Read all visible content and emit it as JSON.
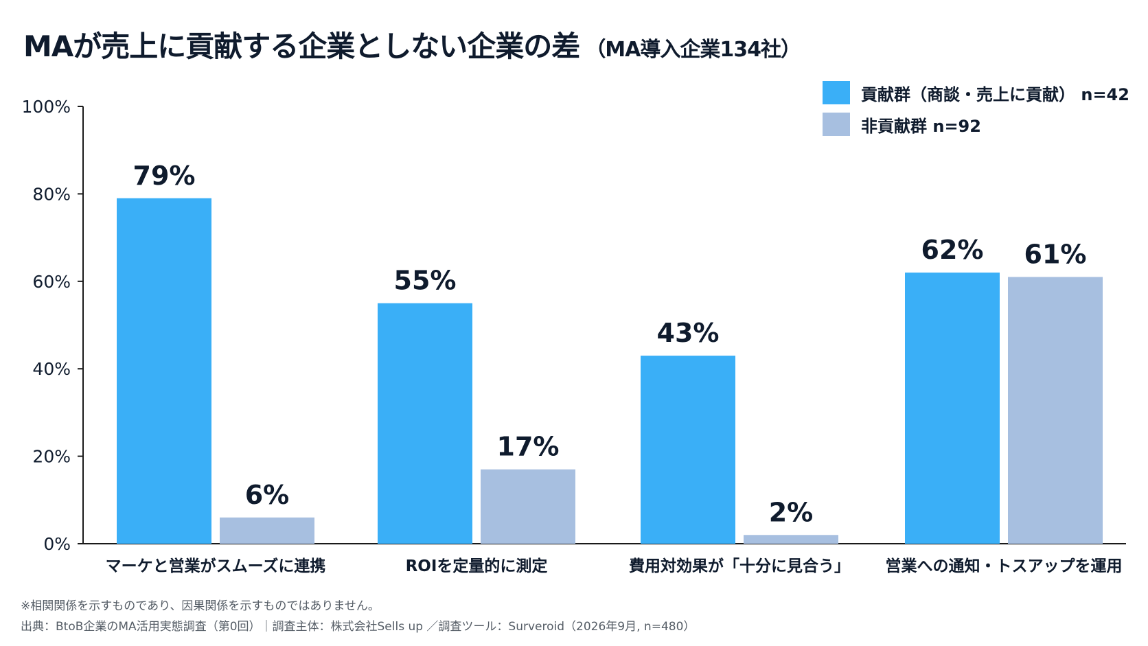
{
  "title": "MAが売上に貢献する企業としない企業の差",
  "subtitle": "（MA導入企業134社）",
  "colors": {
    "contrib": "#3aaff7",
    "noncontrib": "#a7bfe0",
    "axis": "#1a1a1a",
    "text": "#0f1b2d"
  },
  "chart_data": {
    "type": "bar",
    "categories": [
      "マーケと営業がスムーズに連携",
      "ROIを定量的に測定",
      "費用対効果が「十分に見合う」",
      "営業への通知・トスアップを運用"
    ],
    "series": [
      {
        "name": "貢献群（商談・売上に貢献） n=42",
        "values": [
          79,
          55,
          43,
          62
        ],
        "labels": [
          "79%",
          "55%",
          "43%",
          "62%"
        ]
      },
      {
        "name": "非貢献群 n=92",
        "values": [
          6,
          17,
          2,
          61
        ],
        "labels": [
          "6%",
          "17%",
          "2%",
          "61%"
        ]
      }
    ],
    "ylim": [
      0,
      100
    ],
    "yticks": [
      "0%",
      "20%",
      "40%",
      "60%",
      "80%",
      "100%"
    ],
    "grid": false,
    "legend": "top-right"
  },
  "footnotes": {
    "note": "※相関関係を示すものであり、因果関係を示すものではありません。",
    "source": "出典：BtoB企業のMA活用実態調査（第0回）｜調査主体：株式会社Sells up ／調査ツール：Surveroid（2026年9月, n=480）"
  }
}
